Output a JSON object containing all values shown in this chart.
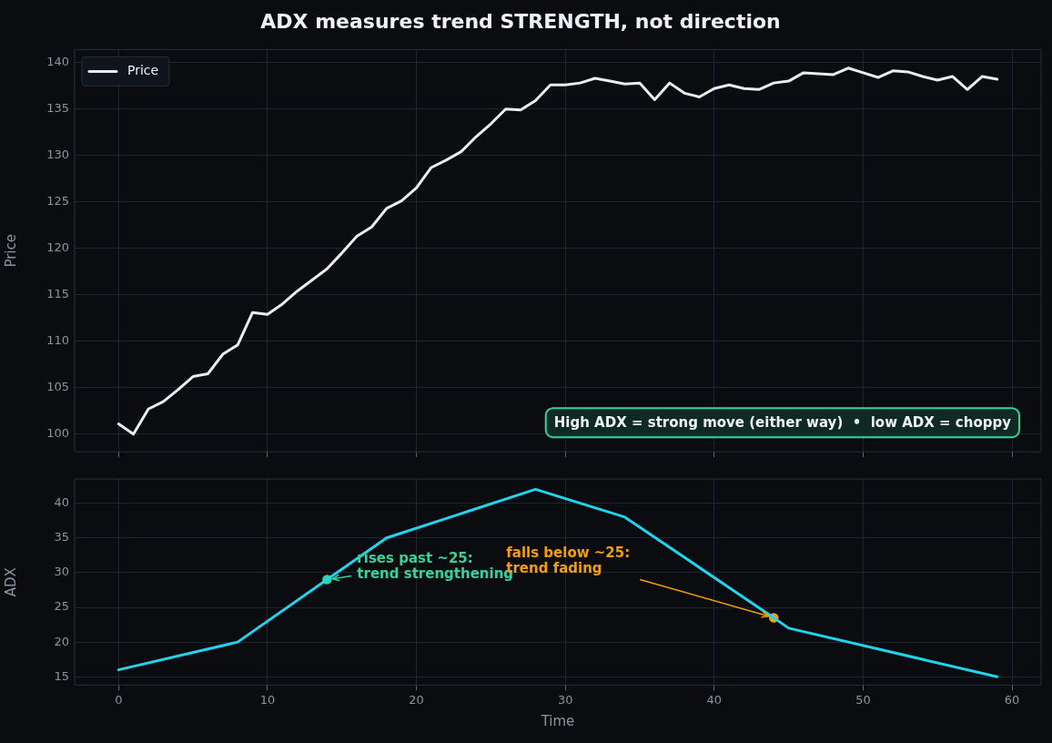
{
  "chart_data": [
    {
      "type": "line",
      "title": "ADX measures trend STRENGTH, not direction",
      "ylabel": "Price",
      "series": [
        {
          "name": "Price",
          "color": "#e8edf2",
          "x": [
            0,
            1,
            2,
            3,
            4,
            5,
            6,
            7,
            8,
            9,
            10,
            11,
            12,
            13,
            14,
            15,
            16,
            17,
            18,
            19,
            20,
            21,
            22,
            23,
            24,
            25,
            26,
            27,
            28,
            29,
            30,
            31,
            32,
            33,
            34,
            35,
            36,
            37,
            38,
            39,
            40,
            41,
            42,
            43,
            44,
            45,
            46,
            47,
            48,
            49,
            50,
            51,
            52,
            53,
            54,
            55,
            56,
            57,
            58,
            59
          ],
          "values": [
            101.1,
            100.0,
            102.7,
            103.5,
            104.8,
            106.2,
            106.5,
            108.6,
            109.6,
            113.1,
            112.9,
            114.0,
            115.4,
            116.6,
            117.8,
            119.5,
            121.3,
            122.3,
            124.3,
            125.1,
            126.5,
            128.7,
            129.5,
            130.4,
            132.0,
            133.4,
            135.0,
            134.9,
            135.9,
            137.6,
            137.6,
            137.8,
            138.3,
            138.0,
            137.7,
            137.8,
            136.0,
            137.8,
            136.7,
            136.3,
            137.2,
            137.6,
            137.2,
            137.1,
            137.8,
            138.0,
            138.9,
            138.8,
            138.7,
            139.4,
            138.9,
            138.4,
            139.1,
            139.0,
            138.5,
            138.1,
            138.5,
            137.1,
            138.5,
            138.2
          ]
        }
      ],
      "xlim": [
        -2.95,
        61.95
      ],
      "xticks": [
        0,
        10,
        20,
        30,
        40,
        50,
        60
      ],
      "ylim": [
        98.1,
        141.4
      ],
      "yticks": [
        100,
        105,
        110,
        115,
        120,
        125,
        130,
        135,
        140
      ],
      "tick_labels": "y",
      "grid": true,
      "legend": "top left",
      "marker": "none",
      "line_style": "solid",
      "annotations": [
        "High ADX = strong move (either way)  •  low ADX = choppy"
      ]
    },
    {
      "type": "line",
      "xlabel": "Time",
      "ylabel": "ADX",
      "series": [
        {
          "color": "#22d3ee",
          "x": [
            0,
            8,
            14,
            18,
            28,
            34,
            44,
            45,
            59
          ],
          "values": [
            16,
            20,
            29,
            35,
            42,
            38,
            23.5,
            22,
            15
          ]
        },
        {
          "type": "scatter",
          "marker": "circle",
          "color": "#34d399",
          "x": [
            14
          ],
          "values": [
            29
          ]
        },
        {
          "type": "scatter",
          "marker": "circle",
          "color": "#f59e0b",
          "x": [
            44
          ],
          "values": [
            23.5
          ]
        }
      ],
      "xlim": [
        -2.95,
        61.95
      ],
      "xticks": [
        0,
        10,
        20,
        30,
        40,
        50,
        60
      ],
      "ylim": [
        13.8,
        43.5
      ],
      "yticks": [
        15,
        20,
        25,
        30,
        35,
        40
      ],
      "grid": true,
      "marker": "none",
      "line_style": "solid",
      "annotations": [
        {
          "text": "rises past ~25:\ntrend strengthening",
          "x": 14,
          "y": 29
        },
        {
          "text": "falls below ~25:\ntrend fading",
          "x": 44,
          "y": 23.5
        }
      ]
    }
  ]
}
